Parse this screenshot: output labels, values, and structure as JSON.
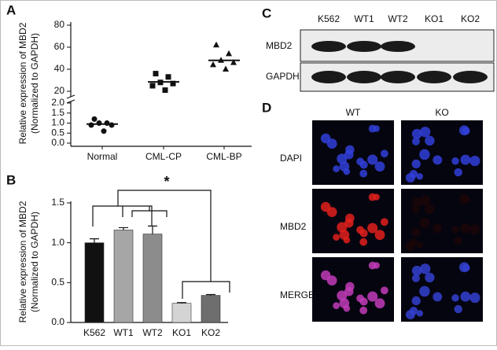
{
  "chart_data": [
    {
      "type": "strip",
      "label": "A",
      "ylabel": [
        "Relative expression of MBD2",
        "(Normalized to GAPDH)"
      ],
      "categories": [
        "Normal",
        "CML-CP",
        "CML-BP"
      ],
      "series": [
        {
          "marker": "circle",
          "values": [
            1.2,
            1.0,
            1.0,
            0.9,
            0.9,
            0.6
          ]
        },
        {
          "marker": "square",
          "values": [
            36,
            33,
            28,
            27,
            25,
            21
          ]
        },
        {
          "marker": "triangle",
          "values": [
            62,
            54,
            48,
            46,
            44,
            40
          ]
        }
      ],
      "means": [
        0.95,
        28.5,
        48
      ],
      "color": "#111111",
      "ylim": [
        15,
        80
      ],
      "yticks": [
        20,
        40,
        60,
        80
      ],
      "ylim_lower": [
        0,
        2
      ],
      "yticks_lower": [
        {
          "value": 0,
          "label": "0.0"
        },
        0.5,
        {
          "value": 1,
          "label": "1.0"
        },
        1.5,
        {
          "value": 2,
          "label": "2.0"
        }
      ]
    },
    {
      "type": "bar",
      "label": "B",
      "ylabel": [
        "Relative expression of MBD2",
        "(Normalized to GAPDH)"
      ],
      "categories": [
        "K562",
        "WT1",
        "WT2",
        "KO1",
        "KO2"
      ],
      "values": [
        1.0,
        1.16,
        1.11,
        0.24,
        0.34
      ],
      "errors": [
        0.05,
        0.03,
        0.1,
        0.01,
        0.01
      ],
      "colors": [
        "#111111",
        "#a6a6a6",
        "#8c8c8c",
        "#d4d4d4",
        "#6e6e6e"
      ],
      "ylim": [
        0,
        1.5
      ],
      "yticks": [
        {
          "value": 0,
          "label": "0.0"
        },
        0.5,
        {
          "value": 1,
          "label": "1.0"
        },
        1.5
      ],
      "annotation": "*"
    }
  ],
  "blot": {
    "label": "C",
    "lanes": [
      "K562",
      "WT1",
      "WT2",
      "KO1",
      "KO2"
    ],
    "rows": [
      "MBD2",
      "GAPDH"
    ]
  },
  "microscopy": {
    "label": "D",
    "columns": [
      "WT",
      "KO"
    ],
    "rows": [
      "DAPI",
      "MBD2",
      "MERGE"
    ]
  }
}
